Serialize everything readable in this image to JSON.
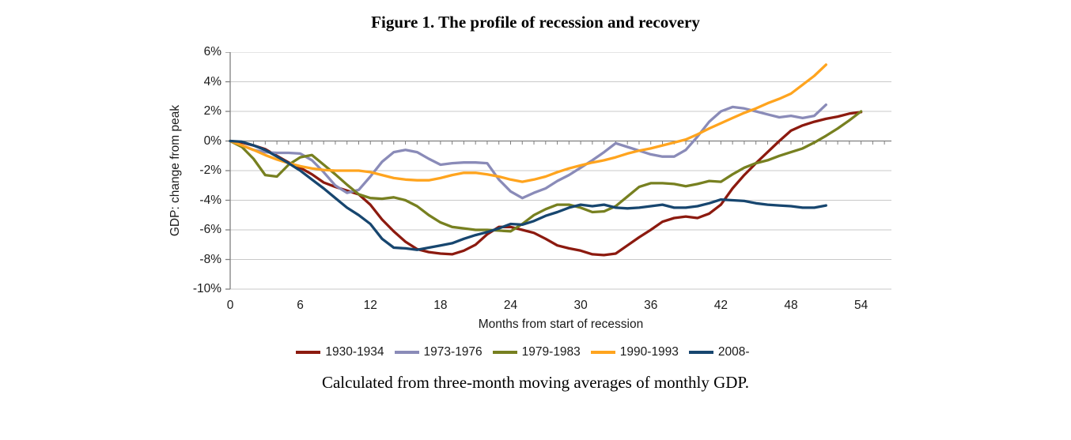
{
  "figure": {
    "title": "Figure 1. The profile of recession and recovery",
    "caption": "Calculated from three-month moving averages of monthly GDP."
  },
  "chart_data": {
    "type": "line",
    "title": "Figure 1. The profile of recession and recovery",
    "xlabel": "Months from start of recession",
    "ylabel": "GDP: change from peak",
    "xlim": [
      0,
      56.6
    ],
    "ylim": [
      -10,
      6
    ],
    "x_ticks": [
      0,
      6,
      12,
      18,
      24,
      30,
      36,
      42,
      48,
      54
    ],
    "y_ticks": [
      "6%",
      "4%",
      "2%",
      "0%",
      "-2%",
      "-4%",
      "-6%",
      "-8%",
      "-10%"
    ],
    "y_tick_values": [
      6,
      4,
      2,
      0,
      -2,
      -4,
      -6,
      -8,
      -10
    ],
    "grid": true,
    "legend_position": "bottom",
    "axis_color": "#7F7F7F",
    "grid_color": "#C9C9C9",
    "x_unit": "months since start of recession (one point per month)",
    "series": [
      {
        "name": "1930-1934",
        "color": "#8C1A0F",
        "values": [
          0,
          -0.1,
          -0.3,
          -0.55,
          -1.0,
          -1.45,
          -1.8,
          -2.25,
          -2.8,
          -3.1,
          -3.35,
          -3.6,
          -4.3,
          -5.3,
          -6.1,
          -6.8,
          -7.3,
          -7.5,
          -7.6,
          -7.65,
          -7.4,
          -7.0,
          -6.3,
          -5.8,
          -5.8,
          -6.0,
          -6.2,
          -6.6,
          -7.05,
          -7.25,
          -7.4,
          -7.65,
          -7.7,
          -7.6,
          -7.05,
          -6.5,
          -6.0,
          -5.45,
          -5.2,
          -5.1,
          -5.2,
          -4.9,
          -4.3,
          -3.2,
          -2.3,
          -1.5,
          -0.75,
          0.0,
          0.7,
          1.05,
          1.3,
          1.5,
          1.65,
          1.85,
          1.95
        ]
      },
      {
        "name": "1973-1976",
        "color": "#8A8BB8",
        "values": [
          0,
          -0.3,
          -0.6,
          -0.75,
          -0.8,
          -0.8,
          -0.85,
          -1.3,
          -2.1,
          -3.0,
          -3.5,
          -3.3,
          -2.4,
          -1.4,
          -0.75,
          -0.6,
          -0.75,
          -1.2,
          -1.6,
          -1.5,
          -1.45,
          -1.45,
          -1.5,
          -2.6,
          -3.4,
          -3.85,
          -3.5,
          -3.2,
          -2.7,
          -2.3,
          -1.8,
          -1.3,
          -0.75,
          -0.15,
          -0.4,
          -0.65,
          -0.9,
          -1.05,
          -1.05,
          -0.6,
          0.3,
          1.3,
          2.0,
          2.3,
          2.2,
          2.0,
          1.8,
          1.6,
          1.7,
          1.55,
          1.7,
          2.45
        ]
      },
      {
        "name": "1979-1983",
        "color": "#778020",
        "values": [
          0,
          -0.4,
          -1.2,
          -2.3,
          -2.4,
          -1.6,
          -1.1,
          -0.95,
          -1.6,
          -2.25,
          -2.95,
          -3.6,
          -3.85,
          -3.9,
          -3.8,
          -4.0,
          -4.4,
          -5.0,
          -5.5,
          -5.8,
          -5.9,
          -6.0,
          -6.0,
          -6.05,
          -6.1,
          -5.6,
          -5.0,
          -4.6,
          -4.3,
          -4.3,
          -4.5,
          -4.8,
          -4.75,
          -4.4,
          -3.75,
          -3.1,
          -2.85,
          -2.85,
          -2.9,
          -3.05,
          -2.9,
          -2.7,
          -2.75,
          -2.25,
          -1.8,
          -1.5,
          -1.3,
          -1.0,
          -0.75,
          -0.5,
          -0.1,
          0.35,
          0.85,
          1.4,
          2.0
        ]
      },
      {
        "name": "1990-1993",
        "color": "#FFA41E",
        "values": [
          0,
          -0.3,
          -0.6,
          -0.95,
          -1.25,
          -1.5,
          -1.7,
          -1.85,
          -1.95,
          -2.0,
          -2.0,
          -2.0,
          -2.1,
          -2.3,
          -2.5,
          -2.6,
          -2.65,
          -2.65,
          -2.5,
          -2.3,
          -2.15,
          -2.15,
          -2.25,
          -2.4,
          -2.6,
          -2.75,
          -2.6,
          -2.4,
          -2.1,
          -1.85,
          -1.65,
          -1.45,
          -1.3,
          -1.1,
          -0.85,
          -0.65,
          -0.5,
          -0.3,
          -0.1,
          0.1,
          0.45,
          0.85,
          1.2,
          1.55,
          1.9,
          2.2,
          2.55,
          2.85,
          3.2,
          3.8,
          4.4,
          5.15
        ]
      },
      {
        "name": "2008-",
        "color": "#17466F",
        "values": [
          0,
          -0.05,
          -0.3,
          -0.6,
          -1.05,
          -1.5,
          -2.0,
          -2.6,
          -3.2,
          -3.85,
          -4.5,
          -5.0,
          -5.6,
          -6.6,
          -7.2,
          -7.25,
          -7.35,
          -7.2,
          -7.05,
          -6.9,
          -6.6,
          -6.35,
          -6.15,
          -5.9,
          -5.6,
          -5.65,
          -5.4,
          -5.05,
          -4.8,
          -4.5,
          -4.3,
          -4.4,
          -4.3,
          -4.5,
          -4.55,
          -4.5,
          -4.4,
          -4.3,
          -4.5,
          -4.5,
          -4.4,
          -4.2,
          -3.95,
          -4.0,
          -4.05,
          -4.2,
          -4.3,
          -4.35,
          -4.4,
          -4.5,
          -4.5,
          -4.35
        ]
      }
    ]
  }
}
